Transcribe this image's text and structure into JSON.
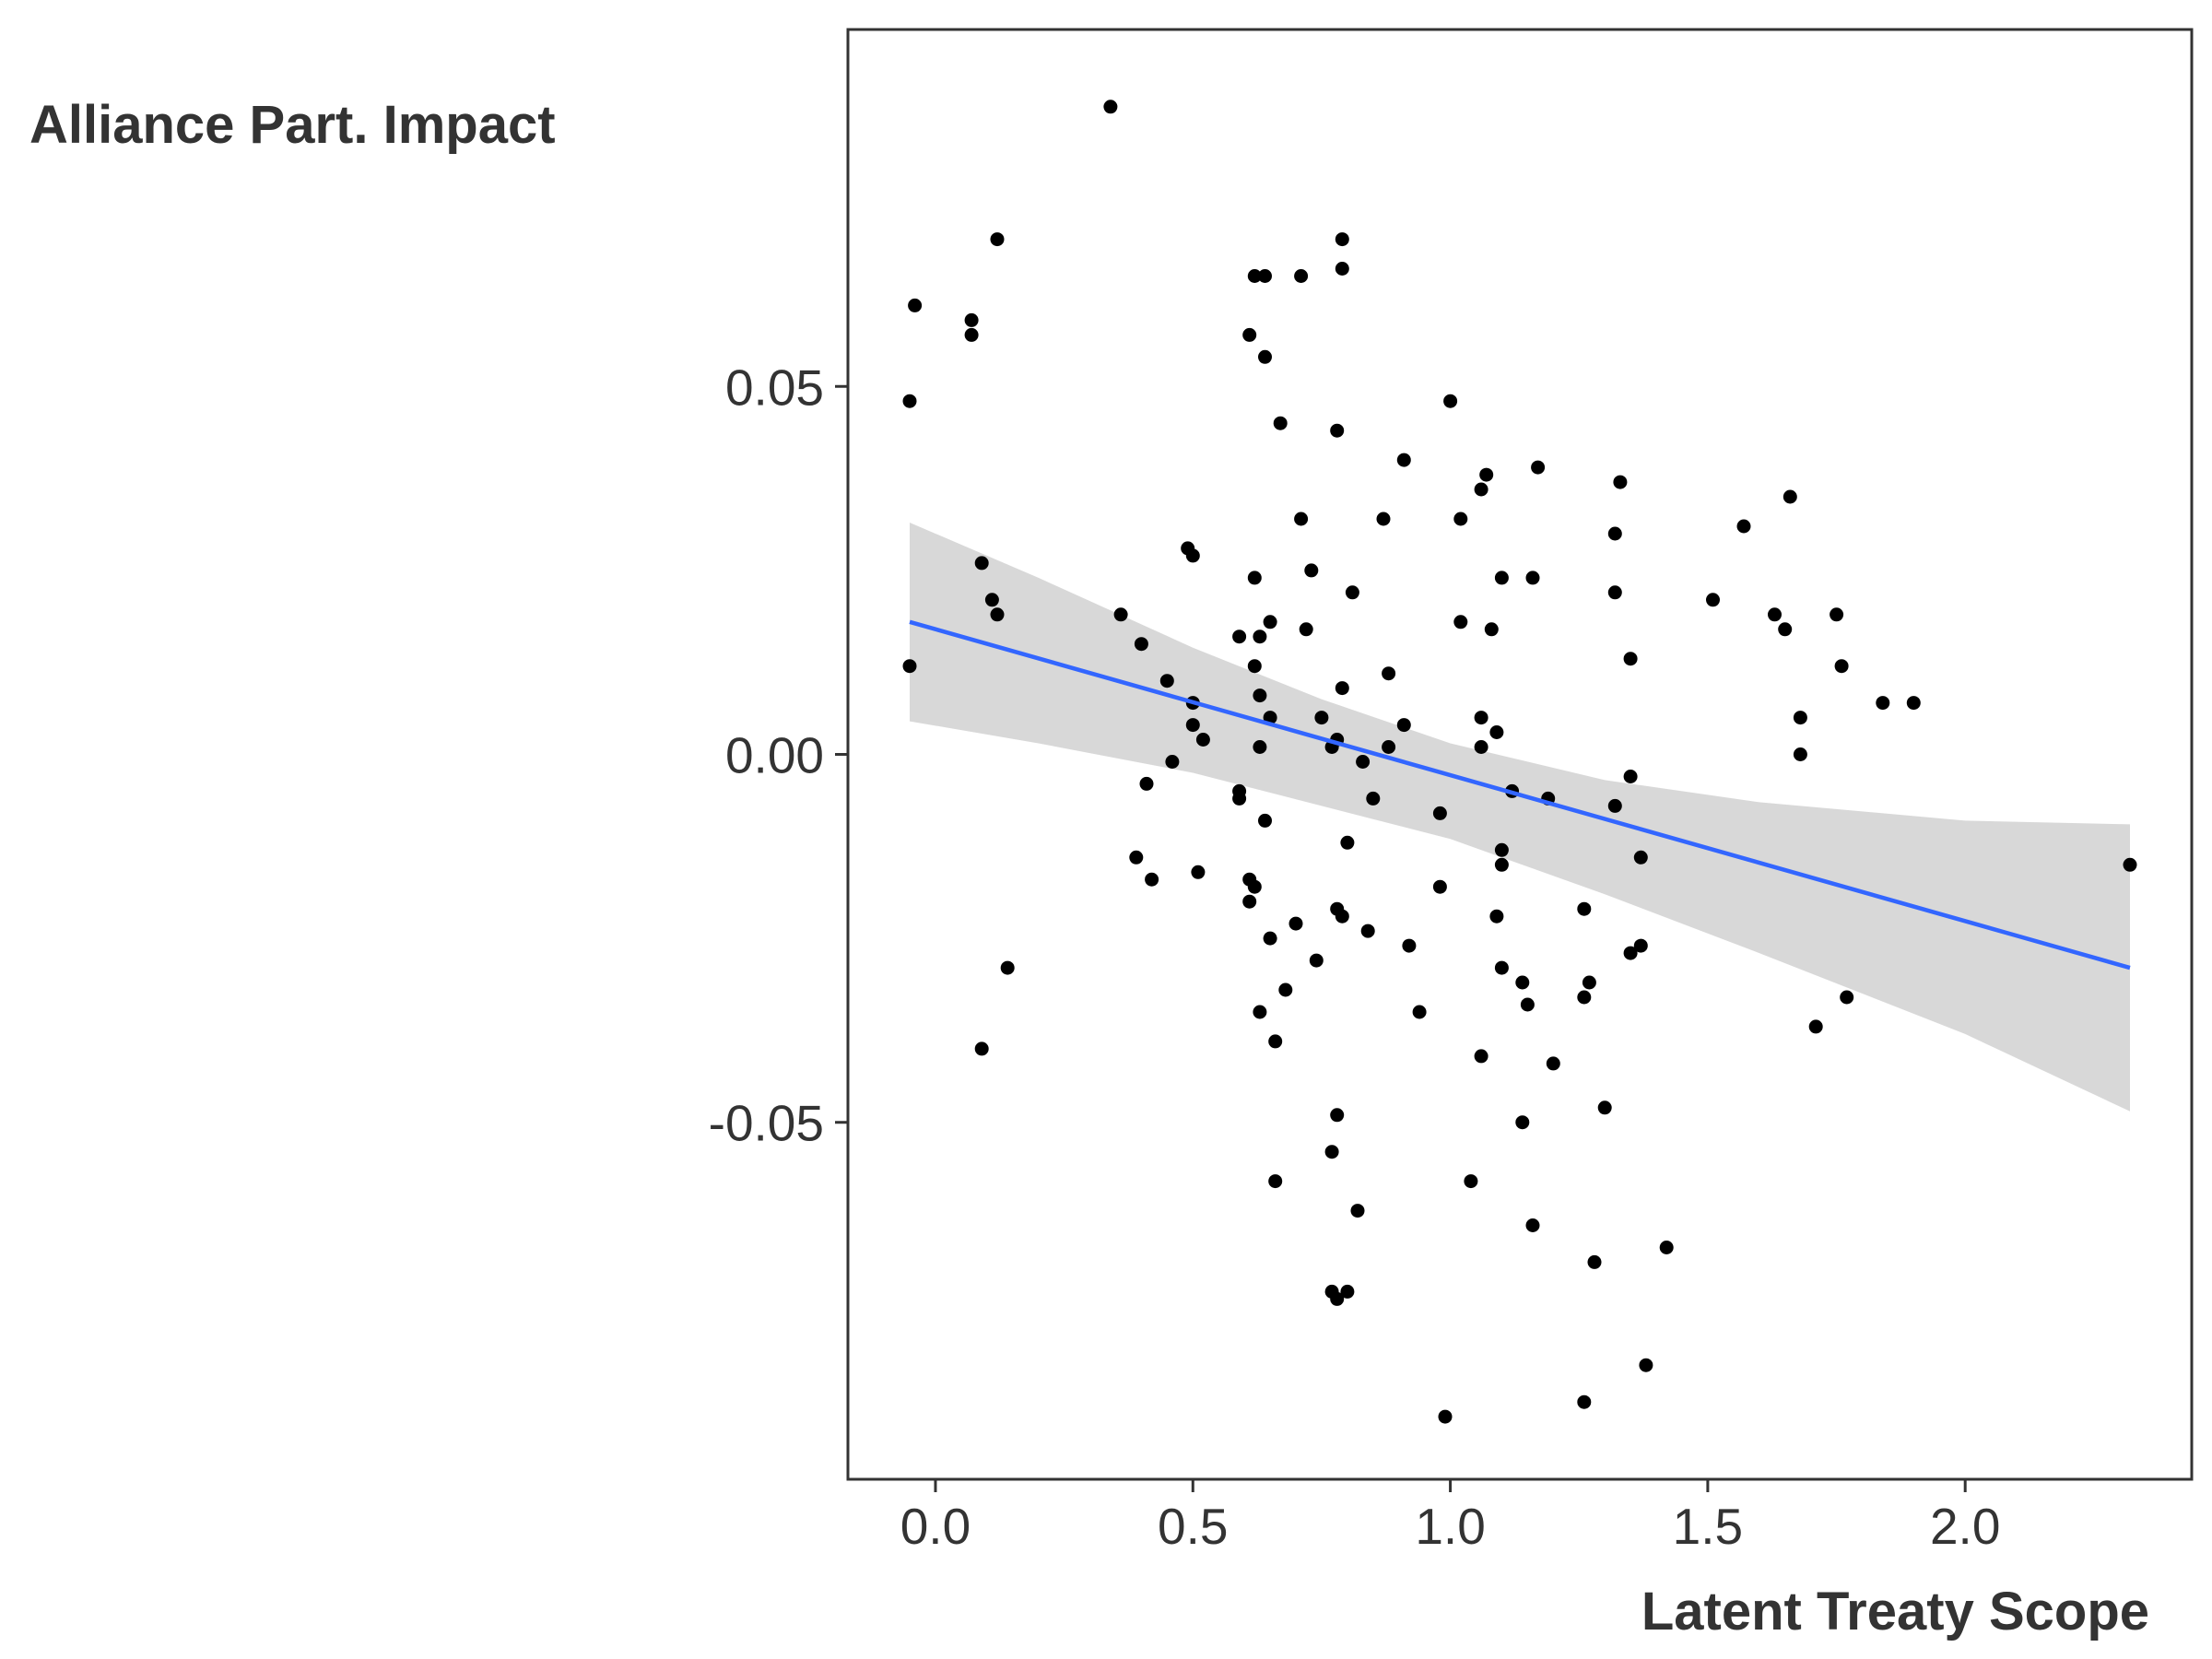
{
  "chart_data": {
    "type": "scatter",
    "title": "",
    "xlabel": "Latent Treaty Scope",
    "ylabel": "Alliance Part. Impact",
    "xlim": [
      -0.17,
      2.44
    ],
    "ylim": [
      -0.0985,
      0.0985
    ],
    "xticks": [
      0.0,
      0.5,
      1.0,
      1.5,
      2.0
    ],
    "xtick_labels": [
      "0.0",
      "0.5",
      "1.0",
      "1.5",
      "2.0"
    ],
    "yticks": [
      -0.05,
      0.0,
      0.05
    ],
    "ytick_labels": [
      "-0.05",
      "0.00",
      "0.05"
    ],
    "grid": false,
    "legend": "none",
    "colors": {
      "points": "#000000",
      "fit_line": "#3366FF",
      "confidence_band": "#d4d4d4",
      "panel_border": "#333333",
      "text": "#333333"
    },
    "points": [
      [
        0.34,
        0.088
      ],
      [
        -0.04,
        0.061
      ],
      [
        -0.05,
        0.048
      ],
      [
        -0.05,
        0.012
      ],
      [
        0.07,
        0.059
      ],
      [
        0.07,
        0.057
      ],
      [
        0.12,
        0.07
      ],
      [
        0.09,
        0.026
      ],
      [
        0.11,
        0.021
      ],
      [
        0.12,
        0.019
      ],
      [
        0.14,
        -0.029
      ],
      [
        0.09,
        -0.04
      ],
      [
        0.36,
        0.019
      ],
      [
        0.4,
        0.015
      ],
      [
        0.41,
        -0.004
      ],
      [
        0.39,
        -0.014
      ],
      [
        0.42,
        -0.017
      ],
      [
        0.45,
        0.01
      ],
      [
        0.46,
        -0.001
      ],
      [
        0.49,
        0.028
      ],
      [
        0.5,
        0.027
      ],
      [
        0.5,
        0.007
      ],
      [
        0.5,
        0.004
      ],
      [
        0.52,
        0.002
      ],
      [
        0.51,
        -0.016
      ],
      [
        0.59,
        0.016
      ],
      [
        0.59,
        -0.005
      ],
      [
        0.59,
        -0.006
      ],
      [
        0.61,
        0.057
      ],
      [
        0.62,
        0.065
      ],
      [
        0.64,
        0.065
      ],
      [
        0.64,
        0.054
      ],
      [
        0.62,
        0.024
      ],
      [
        0.63,
        0.016
      ],
      [
        0.62,
        0.012
      ],
      [
        0.63,
        0.008
      ],
      [
        0.65,
        0.005
      ],
      [
        0.63,
        0.001
      ],
      [
        0.65,
        0.018
      ],
      [
        0.61,
        -0.017
      ],
      [
        0.62,
        -0.018
      ],
      [
        0.61,
        -0.02
      ],
      [
        0.64,
        -0.009
      ],
      [
        0.65,
        -0.025
      ],
      [
        0.63,
        -0.035
      ],
      [
        0.66,
        -0.039
      ],
      [
        0.66,
        -0.058
      ],
      [
        0.67,
        0.045
      ],
      [
        0.68,
        -0.032
      ],
      [
        0.7,
        -0.023
      ],
      [
        0.71,
        0.065
      ],
      [
        0.71,
        0.032
      ],
      [
        0.72,
        0.017
      ],
      [
        0.73,
        0.025
      ],
      [
        0.74,
        -0.028
      ],
      [
        0.75,
        0.005
      ],
      [
        0.77,
        0.001
      ],
      [
        0.78,
        0.002
      ],
      [
        0.78,
        0.044
      ],
      [
        0.79,
        0.07
      ],
      [
        0.79,
        0.066
      ],
      [
        0.79,
        0.009
      ],
      [
        0.78,
        -0.021
      ],
      [
        0.79,
        -0.022
      ],
      [
        0.78,
        -0.049
      ],
      [
        0.77,
        -0.054
      ],
      [
        0.77,
        -0.073
      ],
      [
        0.78,
        -0.074
      ],
      [
        0.8,
        -0.073
      ],
      [
        0.8,
        -0.012
      ],
      [
        0.81,
        0.022
      ],
      [
        0.82,
        -0.062
      ],
      [
        0.83,
        -0.001
      ],
      [
        0.84,
        -0.024
      ],
      [
        0.85,
        -0.006
      ],
      [
        0.87,
        0.032
      ],
      [
        0.88,
        0.011
      ],
      [
        0.88,
        0.001
      ],
      [
        0.91,
        0.04
      ],
      [
        0.91,
        0.004
      ],
      [
        0.92,
        -0.026
      ],
      [
        0.94,
        -0.035
      ],
      [
        0.98,
        -0.008
      ],
      [
        0.98,
        -0.018
      ],
      [
        0.99,
        -0.09
      ],
      [
        1.0,
        0.048
      ],
      [
        1.02,
        0.032
      ],
      [
        1.02,
        0.018
      ],
      [
        1.04,
        -0.058
      ],
      [
        1.06,
        0.036
      ],
      [
        1.07,
        0.038
      ],
      [
        1.06,
        0.005
      ],
      [
        1.06,
        0.001
      ],
      [
        1.06,
        -0.041
      ],
      [
        1.08,
        0.017
      ],
      [
        1.09,
        0.003
      ],
      [
        1.1,
        0.024
      ],
      [
        1.1,
        -0.013
      ],
      [
        1.1,
        -0.015
      ],
      [
        1.09,
        -0.022
      ],
      [
        1.1,
        -0.029
      ],
      [
        1.12,
        -0.005
      ],
      [
        1.14,
        -0.031
      ],
      [
        1.14,
        -0.05
      ],
      [
        1.15,
        -0.034
      ],
      [
        1.16,
        0.024
      ],
      [
        1.16,
        -0.064
      ],
      [
        1.17,
        0.039
      ],
      [
        1.19,
        -0.006
      ],
      [
        1.2,
        -0.042
      ],
      [
        1.26,
        -0.021
      ],
      [
        1.26,
        -0.033
      ],
      [
        1.27,
        -0.031
      ],
      [
        1.26,
        -0.088
      ],
      [
        1.28,
        -0.069
      ],
      [
        1.3,
        -0.048
      ],
      [
        1.32,
        0.03
      ],
      [
        1.32,
        0.022
      ],
      [
        1.32,
        -0.007
      ],
      [
        1.33,
        0.037
      ],
      [
        1.35,
        0.013
      ],
      [
        1.35,
        -0.003
      ],
      [
        1.35,
        -0.027
      ],
      [
        1.37,
        -0.026
      ],
      [
        1.37,
        -0.014
      ],
      [
        1.38,
        -0.083
      ],
      [
        1.42,
        -0.067
      ],
      [
        1.51,
        0.021
      ],
      [
        1.57,
        0.031
      ],
      [
        1.63,
        0.019
      ],
      [
        1.65,
        0.017
      ],
      [
        1.66,
        0.035
      ],
      [
        1.68,
        0.005
      ],
      [
        1.68,
        0.0
      ],
      [
        1.71,
        -0.037
      ],
      [
        1.75,
        0.019
      ],
      [
        1.76,
        0.012
      ],
      [
        1.77,
        -0.033
      ],
      [
        1.84,
        0.007
      ],
      [
        1.9,
        0.007
      ],
      [
        2.32,
        -0.015
      ]
    ],
    "fit_line": {
      "x": [
        -0.05,
        2.32
      ],
      "y": [
        0.018,
        -0.029
      ]
    },
    "confidence_band": {
      "x": [
        -0.05,
        0.2,
        0.5,
        0.75,
        1.0,
        1.3,
        1.6,
        2.0,
        2.32
      ],
      "lower": [
        0.0045,
        0.0015,
        -0.0025,
        -0.007,
        -0.0115,
        -0.019,
        -0.027,
        -0.038,
        -0.0485
      ],
      "upper": [
        0.0315,
        0.024,
        0.0145,
        0.0075,
        0.0015,
        -0.0035,
        -0.0065,
        -0.009,
        -0.0095
      ]
    }
  }
}
